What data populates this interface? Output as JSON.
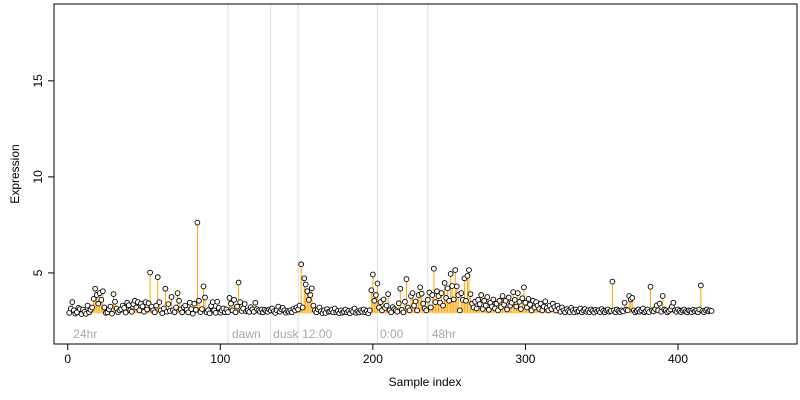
{
  "chart_data": {
    "type": "scatter",
    "title": "",
    "xlabel": "Sample index",
    "ylabel": "Expression",
    "xlim": [
      -9,
      478
    ],
    "ylim": [
      1.3,
      19.0
    ],
    "x_ticks": [
      0,
      100,
      200,
      300,
      400
    ],
    "y_ticks": [
      5,
      10,
      15
    ],
    "grid": false,
    "baseline": 2.9,
    "colors": {
      "up_stem": "#ffa500",
      "down_stem": "#6495ed",
      "point_fill": "#ffffff",
      "point_stroke": "#000000",
      "divider": "#dddddd",
      "section_label": "#a8a8a8"
    },
    "sections": [
      {
        "label": "24hr",
        "x": 3
      },
      {
        "label": "dawn",
        "x": 107
      },
      {
        "label": "dusk",
        "x": 134
      },
      {
        "label": "12:00",
        "x": 153
      },
      {
        "label": "0:00",
        "x": 204
      },
      {
        "label": "48hr",
        "x": 238
      }
    ],
    "dividers": [
      105,
      133,
      151,
      203,
      236
    ],
    "values": [
      2.92,
      3.15,
      3.48,
      3.05,
      2.88,
      2.95,
      3.18,
      3.12,
      2.86,
      3.1,
      2.98,
      2.87,
      3.3,
      2.95,
      3.08,
      3.2,
      3.65,
      4.18,
      3.85,
      3.4,
      3.95,
      3.6,
      4.05,
      3.2,
      2.92,
      2.95,
      3.1,
      3.25,
      2.88,
      3.9,
      3.5,
      3.15,
      2.96,
      3.05,
      3.12,
      3.3,
      3.18,
      2.94,
      3.45,
      3.32,
      3.05,
      2.98,
      3.38,
      3.55,
      3.2,
      3.48,
      3.05,
      3.4,
      3.26,
      2.98,
      3.48,
      3.1,
      3.42,
      5.02,
      3.25,
      3.05,
      2.95,
      3.3,
      4.78,
      3.48,
      3.05,
      2.9,
      3.15,
      4.18,
      2.98,
      3.38,
      3.02,
      3.75,
      3.05,
      2.95,
      3.2,
      3.95,
      3.55,
      3.1,
      2.95,
      3.22,
      3.3,
      3.08,
      2.95,
      3.45,
      3.12,
      2.88,
      3.4,
      3.08,
      7.62,
      3.55,
      2.96,
      3.12,
      4.3,
      3.72,
      2.95,
      3.06,
      2.9,
      3.28,
      3.48,
      3.05,
      2.92,
      3.5,
      3.18,
      2.93,
      3.05,
      3.15,
      2.95,
      3.1,
      2.96,
      3.7,
      3.4,
      3.05,
      3.6,
      2.95,
      3.25,
      4.5,
      3.48,
      3.02,
      3.15,
      3.38,
      3.0,
      3.05,
      2.97,
      3.22,
      3.1,
      2.98,
      3.45,
      3.12,
      3.05,
      2.98,
      3.1,
      2.95,
      3.08,
      3.02,
      2.97,
      3.1,
      3.05,
      3.15,
      3.0,
      2.92,
      3.05,
      3.25,
      2.98,
      3.1,
      3.18,
      3.05,
      2.93,
      3.02,
      2.98,
      3.05,
      2.95,
      3.12,
      3.05,
      3.2,
      3.1,
      3.3,
      5.45,
      3.2,
      4.72,
      4.4,
      4.05,
      3.6,
      3.85,
      4.2,
      3.3,
      3.05,
      2.95,
      3.1,
      3.2,
      3.0,
      2.9,
      3.05,
      2.92,
      3.12,
      2.98,
      3.0,
      3.08,
      2.95,
      3.15,
      2.96,
      3.02,
      2.9,
      3.05,
      2.93,
      2.98,
      3.1,
      2.95,
      3.02,
      2.9,
      3.05,
      2.98,
      3.15,
      2.92,
      3.0,
      2.95,
      3.05,
      2.98,
      3.1,
      2.95,
      3.02,
      2.9,
      3.05,
      4.1,
      4.92,
      3.55,
      3.85,
      4.45,
      3.2,
      3.48,
      3.05,
      3.62,
      3.18,
      3.3,
      3.9,
      3.05,
      2.95,
      3.22,
      3.12,
      3.05,
      2.98,
      3.42,
      4.18,
      3.08,
      2.95,
      3.5,
      4.68,
      3.2,
      3.05,
      3.8,
      3.95,
      3.3,
      3.52,
      3.05,
      3.85,
      4.25,
      3.92,
      3.4,
      3.15,
      3.05,
      3.6,
      3.98,
      3.2,
      3.85,
      5.22,
      3.48,
      4.05,
      3.8,
      3.45,
      3.95,
      3.3,
      4.48,
      3.7,
      4.2,
      3.55,
      4.95,
      4.32,
      3.62,
      5.15,
      4.3,
      3.85,
      3.05,
      3.95,
      3.6,
      4.72,
      3.55,
      4.85,
      5.15,
      3.9,
      3.4,
      3.2,
      3.5,
      3.15,
      3.6,
      3.38,
      3.85,
      3.12,
      3.55,
      3.3,
      3.75,
      3.08,
      3.45,
      3.25,
      3.62,
      3.15,
      3.4,
      3.05,
      3.55,
      3.22,
      3.8,
      3.35,
      3.55,
      3.1,
      3.72,
      3.3,
      3.45,
      4.0,
      3.6,
      3.25,
      3.95,
      3.5,
      3.12,
      3.68,
      4.25,
      3.45,
      3.2,
      3.65,
      3.35,
      3.05,
      3.55,
      3.2,
      3.48,
      3.3,
      3.12,
      3.4,
      3.05,
      3.25,
      3.52,
      3.18,
      3.05,
      3.3,
      3.12,
      3.4,
      3.22,
      3.05,
      3.3,
      3.15,
      2.98,
      3.2,
      3.05,
      2.95,
      3.12,
      3.02,
      2.96,
      3.18,
      3.05,
      2.94,
      3.1,
      2.98,
      3.02,
      3.15,
      2.95,
      3.05,
      3.12,
      2.98,
      3.05,
      2.96,
      3.1,
      3.02,
      2.94,
      3.08,
      3.0,
      3.05,
      2.96,
      3.12,
      3.02,
      2.95,
      3.05,
      3.1,
      2.98,
      3.02,
      4.55,
      3.05,
      2.95,
      3.1,
      3.02,
      2.96,
      3.05,
      3.0,
      3.45,
      3.1,
      3.05,
      3.8,
      3.62,
      3.7,
      3.05,
      2.95,
      3.02,
      3.1,
      2.98,
      3.05,
      3.15,
      2.95,
      3.02,
      3.1,
      2.96,
      4.28,
      3.05,
      3.0,
      3.12,
      3.3,
      3.05,
      3.4,
      2.98,
      3.8,
      3.1,
      3.05,
      2.95,
      3.02,
      3.1,
      3.25,
      3.45,
      3.05,
      2.98,
      3.1,
      3.02,
      2.96,
      3.05,
      3.1,
      3.0,
      2.95,
      3.05,
      3.02,
      2.96,
      3.08,
      3.0,
      3.05,
      2.95,
      3.1,
      4.35,
      3.02,
      2.96,
      3.05,
      3.1,
      3.0,
      3.05,
      3.02
    ]
  }
}
